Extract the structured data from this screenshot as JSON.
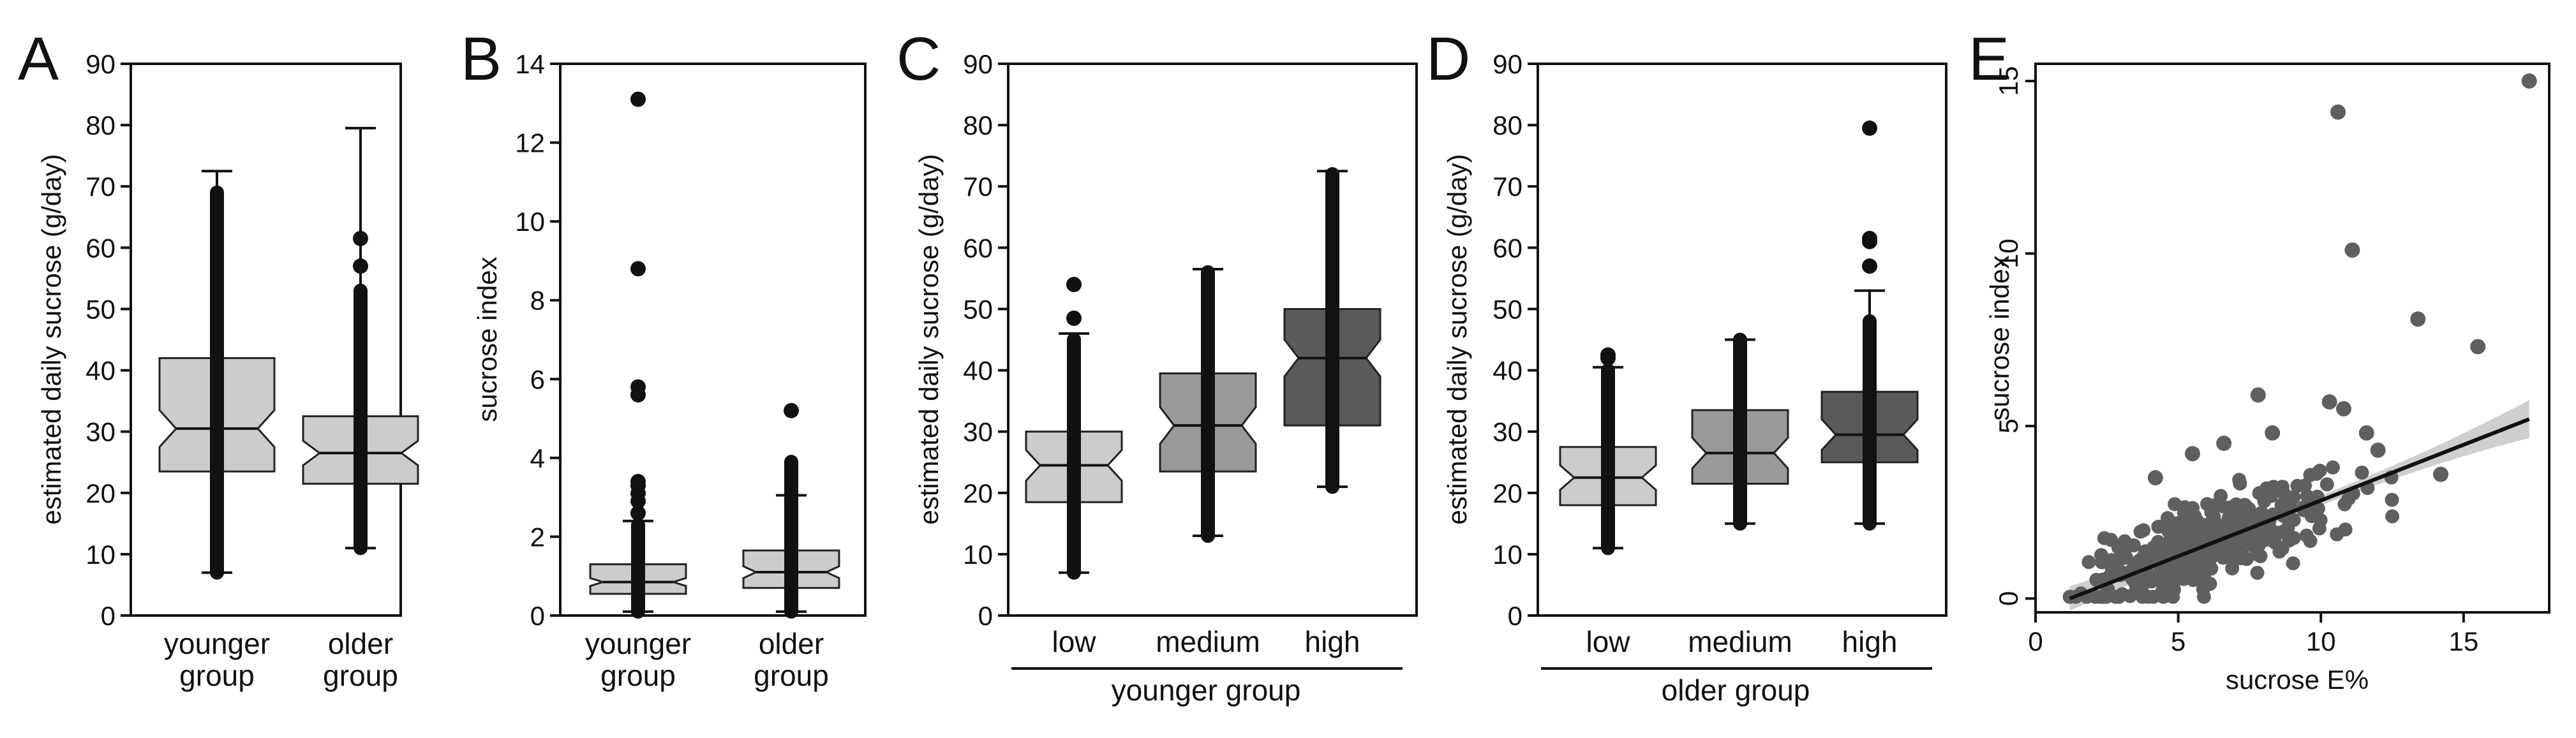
{
  "figure": {
    "colors": {
      "light": "#cccccc",
      "mid": "#999999",
      "dark": "#5a5a5a",
      "points": "#5f5f5f",
      "line": "#111111",
      "ci": "#cfcfcf"
    }
  },
  "chart_data": [
    {
      "panel": "A",
      "type": "boxplot",
      "notched": true,
      "title": "",
      "xlabel": "",
      "ylabel": "estimated daily sucrose (g/day)",
      "ylim": [
        0,
        90
      ],
      "yticks": [
        0,
        10,
        20,
        30,
        40,
        50,
        60,
        70,
        80,
        90
      ],
      "categories": [
        {
          "label": [
            "younger",
            "group"
          ],
          "color": "light",
          "whisker_low": 7,
          "q1": 23.5,
          "median": 30.5,
          "q3": 42,
          "whisker_high": 72.5,
          "notch_low": 27.5,
          "notch_high": 33.5,
          "point_band": [
            7,
            69
          ],
          "outliers": []
        },
        {
          "label": [
            "older",
            "group"
          ],
          "color": "light",
          "whisker_low": 11,
          "q1": 21.5,
          "median": 26.5,
          "q3": 32.5,
          "whisker_high": 79.5,
          "notch_low": 24.5,
          "notch_high": 28.5,
          "point_band": [
            11,
            53
          ],
          "outliers": [
            57,
            61.5
          ]
        }
      ]
    },
    {
      "panel": "B",
      "type": "boxplot",
      "notched": true,
      "title": "",
      "xlabel": "",
      "ylabel": "sucrose index",
      "ylim": [
        0,
        14
      ],
      "yticks": [
        0,
        2,
        4,
        6,
        8,
        10,
        12,
        14
      ],
      "categories": [
        {
          "label": [
            "younger",
            "group"
          ],
          "color": "light",
          "whisker_low": 0.1,
          "q1": 0.55,
          "median": 0.85,
          "q3": 1.3,
          "whisker_high": 2.4,
          "notch_low": 0.75,
          "notch_high": 0.95,
          "point_band": [
            0.1,
            2.3
          ],
          "outliers": [
            2.6,
            2.9,
            3.1,
            3.3,
            3.4,
            5.6,
            5.8,
            8.8,
            13.1
          ]
        },
        {
          "label": [
            "older",
            "group"
          ],
          "color": "light",
          "whisker_low": 0.1,
          "q1": 0.7,
          "median": 1.1,
          "q3": 1.65,
          "whisker_high": 3.05,
          "notch_low": 0.95,
          "notch_high": 1.25,
          "point_band": [
            0.1,
            3.9
          ],
          "outliers": [
            5.2
          ]
        }
      ]
    },
    {
      "panel": "C",
      "type": "boxplot",
      "notched": true,
      "title": "",
      "xlabel": "",
      "group_label": "younger group",
      "ylabel": "estimated daily sucrose (g/day)",
      "ylim": [
        0,
        90
      ],
      "yticks": [
        0,
        10,
        20,
        30,
        40,
        50,
        60,
        70,
        80,
        90
      ],
      "categories": [
        {
          "label": [
            "low"
          ],
          "color": "light",
          "whisker_low": 7,
          "q1": 18.5,
          "median": 24.5,
          "q3": 30,
          "whisker_high": 46,
          "notch_low": 22,
          "notch_high": 27,
          "point_band": [
            7,
            45
          ],
          "outliers": [
            48.5,
            54
          ]
        },
        {
          "label": [
            "medium"
          ],
          "color": "mid",
          "whisker_low": 13,
          "q1": 23.5,
          "median": 31,
          "q3": 39.5,
          "whisker_high": 56.5,
          "notch_low": 28,
          "notch_high": 34,
          "point_band": [
            13,
            56
          ],
          "outliers": []
        },
        {
          "label": [
            "high"
          ],
          "color": "dark",
          "whisker_low": 21,
          "q1": 31,
          "median": 42,
          "q3": 50,
          "whisker_high": 72.5,
          "notch_low": 39,
          "notch_high": 45,
          "point_band": [
            21,
            72
          ],
          "outliers": []
        }
      ]
    },
    {
      "panel": "D",
      "type": "boxplot",
      "notched": true,
      "title": "",
      "xlabel": "",
      "group_label": "older group",
      "ylabel": "estimated daily sucrose (g/day)",
      "ylim": [
        0,
        90
      ],
      "yticks": [
        0,
        10,
        20,
        30,
        40,
        50,
        60,
        70,
        80,
        90
      ],
      "categories": [
        {
          "label": [
            "low"
          ],
          "color": "light",
          "whisker_low": 11,
          "q1": 18,
          "median": 22.5,
          "q3": 27.5,
          "whisker_high": 40.5,
          "notch_low": 20.5,
          "notch_high": 24.5,
          "point_band": [
            11,
            40
          ],
          "outliers": [
            42,
            42.5
          ]
        },
        {
          "label": [
            "medium"
          ],
          "color": "mid",
          "whisker_low": 15,
          "q1": 21.5,
          "median": 26.5,
          "q3": 33.5,
          "whisker_high": 45,
          "notch_low": 24,
          "notch_high": 29,
          "point_band": [
            15,
            45
          ],
          "outliers": []
        },
        {
          "label": [
            "high"
          ],
          "color": "dark",
          "whisker_low": 15,
          "q1": 25,
          "median": 29.5,
          "q3": 36.5,
          "whisker_high": 53,
          "notch_low": 27,
          "notch_high": 32,
          "point_band": [
            15,
            48
          ],
          "outliers": [
            57,
            61,
            61.5,
            79.5
          ]
        }
      ]
    },
    {
      "panel": "E",
      "type": "scatter",
      "title": "",
      "xlabel": "sucrose E%",
      "ylabel": "sucrose index",
      "xlim": [
        0,
        18
      ],
      "ylim": [
        -0.4,
        15.5
      ],
      "xticks": [
        0,
        5,
        10,
        15
      ],
      "yticks": [
        0,
        5,
        10,
        15
      ],
      "regression": {
        "x": [
          1.2,
          17.3
        ],
        "y": [
          0.0,
          5.2
        ],
        "ci_halfwidth_ends": [
          0.35,
          0.55
        ],
        "ci_halfwidth_center": 0.14
      },
      "highlight_points": [
        [
          17.3,
          15.0
        ],
        [
          10.6,
          14.1
        ],
        [
          11.1,
          10.1
        ],
        [
          13.4,
          8.1
        ],
        [
          15.5,
          7.3
        ],
        [
          7.8,
          5.9
        ],
        [
          10.3,
          5.7
        ],
        [
          10.8,
          5.5
        ],
        [
          11.6,
          4.8
        ],
        [
          12.0,
          4.3
        ],
        [
          14.2,
          3.6
        ],
        [
          8.3,
          4.8
        ],
        [
          6.6,
          4.5
        ],
        [
          5.5,
          4.2
        ],
        [
          4.2,
          3.5
        ]
      ],
      "cloud": {
        "count": 340,
        "seed": 7,
        "x_mean": 6.0,
        "x_sd": 2.1,
        "x_range": [
          1.2,
          12.5
        ],
        "slope": 0.27,
        "intercept": -0.05,
        "noise_sd": 0.62,
        "y_range": [
          0.05,
          4.2
        ]
      }
    }
  ]
}
